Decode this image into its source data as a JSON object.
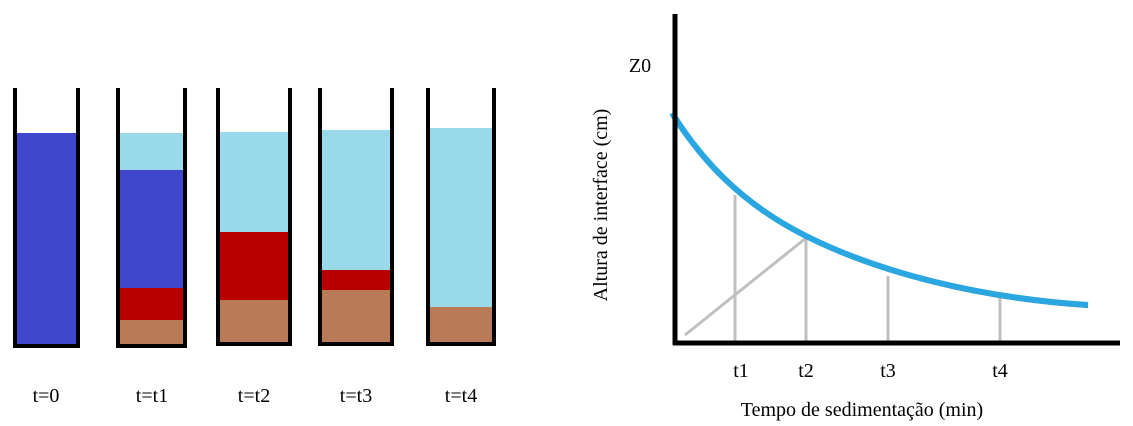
{
  "cylinders": {
    "labels": [
      "t=0",
      "t=t1",
      "t=t2",
      "t=t3",
      "t=t4"
    ]
  },
  "graph": {
    "z0_label": "Z0",
    "y_axis_label": "Altura de interface (cm)",
    "x_axis_label": "Tempo de sedimentação (min)",
    "tick_labels": [
      "t1",
      "t2",
      "t3",
      "t4"
    ]
  }
}
